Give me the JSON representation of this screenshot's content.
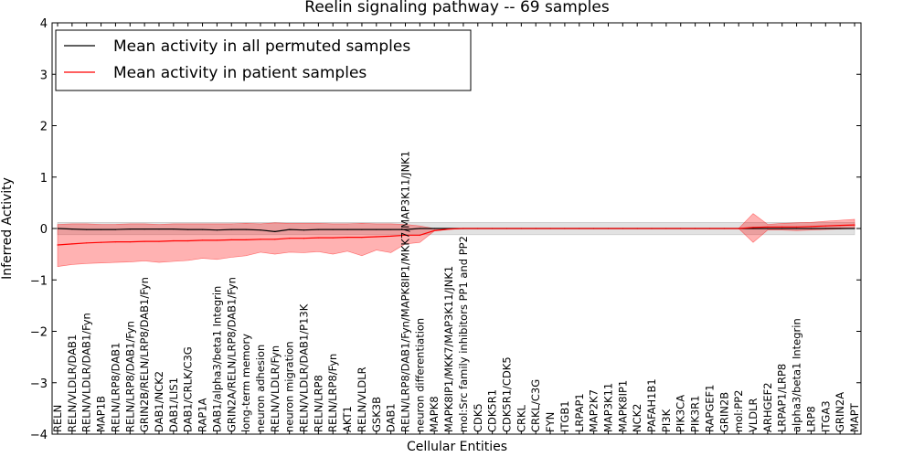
{
  "chart_data": {
    "type": "line",
    "title": "Reelin signaling pathway -- 69 samples",
    "xlabel": "Cellular Entities",
    "ylabel": "Inferred Activity",
    "ylim": [
      -4,
      4
    ],
    "yticks": [
      4,
      3,
      2,
      1,
      0,
      -1,
      -2,
      -3,
      -4
    ],
    "ytick_labels": [
      "4",
      "3",
      "2",
      "1",
      "0",
      "−1",
      "−2",
      "−3",
      "−4"
    ],
    "legend": {
      "placement": "top-left",
      "entries": [
        {
          "name": "Mean activity in all permuted samples",
          "color": "#000000"
        },
        {
          "name": "Mean activity in patient samples",
          "color": "#ff0000"
        }
      ]
    },
    "categories": [
      "RELN",
      "RELN/VLDLR/DAB1",
      "RELN/VLDLR/DAB1/Fyn",
      "MAP1B",
      "RELN/LRP8/DAB1",
      "RELN/LRP8/DAB1/Fyn",
      "GRIN2B/RELN/LRP8/DAB1/Fyn",
      "DAB1/NCK2",
      "DAB1/LIS1",
      "DAB1/CRLK/C3G",
      "RAP1A",
      "DAB1/alpha3/beta1 Integrin",
      "GRIN2A/RELN/LRP8/DAB1/Fyn",
      "long-term memory",
      "neuron adhesion",
      "RELN/VLDLR/Fyn",
      "neuron migration",
      "RELN/VLDLR/DAB1/P13K",
      "RELN/LRP8",
      "RELN/LRP8/Fyn",
      "AKT1",
      "RELN/VLDLR",
      "GSK3B",
      "DAB1",
      "RELN/LRP8/DAB1/Fyn/MAPK8IP1/MKK7/MAP3K11/JNK1",
      "neuron differentiation",
      "MAPK8",
      "MAPK8IP1/MKK7/MAP3K11/JNK1",
      "mol:Src family inhibitors PP1 and PP2",
      "CDK5",
      "CDK5R1",
      "CDK5R1/CDK5",
      "CRKL",
      "CRKL/C3G",
      "FYN",
      "ITGB1",
      "LRPAP1",
      "MAP2K7",
      "MAP3K11",
      "MAPK8IP1",
      "NCK2",
      "PAFAH1B1",
      "PI3K",
      "PIK3CA",
      "PIK3R1",
      "RAPGEF1",
      "GRIN2B",
      "mol:PP2",
      "VLDLR",
      "ARHGEF2",
      "LRPAP1/LRP8",
      "alpha3/beta1 Integrin",
      "LRP8",
      "ITGA3",
      "GRIN2A",
      "MAPT"
    ],
    "series": [
      {
        "name": "Mean activity in all permuted samples",
        "color": "#000000",
        "values": [
          0.0,
          -0.01,
          -0.02,
          -0.02,
          -0.02,
          -0.01,
          -0.01,
          -0.01,
          -0.01,
          -0.02,
          -0.02,
          -0.03,
          -0.02,
          -0.02,
          -0.03,
          -0.06,
          -0.02,
          -0.03,
          -0.02,
          -0.02,
          -0.02,
          -0.02,
          -0.02,
          -0.02,
          -0.02,
          0.0,
          0.0,
          0.0,
          0.0,
          0.0,
          0.0,
          0.0,
          0.0,
          0.0,
          0.0,
          0.0,
          0.0,
          0.0,
          0.0,
          0.0,
          0.0,
          0.0,
          0.0,
          0.0,
          0.0,
          0.0,
          0.0,
          0.0,
          0.0,
          0.0,
          0.0,
          0.0,
          0.0,
          0.0,
          0.0,
          0.0
        ],
        "band_lower": [
          -0.12,
          -0.12,
          -0.12,
          -0.12,
          -0.12,
          -0.12,
          -0.12,
          -0.12,
          -0.12,
          -0.12,
          -0.12,
          -0.12,
          -0.12,
          -0.12,
          -0.12,
          -0.12,
          -0.12,
          -0.12,
          -0.12,
          -0.12,
          -0.12,
          -0.12,
          -0.12,
          -0.12,
          -0.12,
          -0.12,
          -0.12,
          -0.12,
          -0.12,
          -0.12,
          -0.12,
          -0.12,
          -0.12,
          -0.12,
          -0.12,
          -0.12,
          -0.12,
          -0.12,
          -0.12,
          -0.12,
          -0.12,
          -0.12,
          -0.12,
          -0.12,
          -0.12,
          -0.12,
          -0.12,
          -0.12,
          -0.12,
          -0.12,
          -0.12,
          -0.12,
          -0.12,
          -0.12,
          -0.12,
          -0.12
        ],
        "band_upper": [
          0.12,
          0.12,
          0.12,
          0.12,
          0.12,
          0.12,
          0.12,
          0.12,
          0.12,
          0.12,
          0.12,
          0.12,
          0.12,
          0.12,
          0.12,
          0.12,
          0.12,
          0.12,
          0.12,
          0.12,
          0.12,
          0.12,
          0.12,
          0.12,
          0.12,
          0.12,
          0.12,
          0.12,
          0.12,
          0.12,
          0.12,
          0.12,
          0.12,
          0.12,
          0.12,
          0.12,
          0.12,
          0.12,
          0.12,
          0.12,
          0.12,
          0.12,
          0.12,
          0.12,
          0.12,
          0.12,
          0.12,
          0.12,
          0.12,
          0.12,
          0.12,
          0.12,
          0.12,
          0.12,
          0.12,
          0.12
        ]
      },
      {
        "name": "Mean activity in patient samples",
        "color": "#ff0000",
        "values": [
          -0.32,
          -0.3,
          -0.28,
          -0.27,
          -0.26,
          -0.26,
          -0.25,
          -0.25,
          -0.24,
          -0.24,
          -0.23,
          -0.23,
          -0.22,
          -0.22,
          -0.21,
          -0.21,
          -0.19,
          -0.19,
          -0.18,
          -0.18,
          -0.17,
          -0.17,
          -0.16,
          -0.15,
          -0.13,
          -0.13,
          -0.04,
          -0.01,
          0.0,
          0.0,
          0.0,
          0.0,
          0.0,
          0.0,
          0.0,
          0.0,
          0.0,
          0.0,
          0.0,
          0.0,
          0.0,
          0.0,
          0.0,
          0.0,
          0.0,
          0.0,
          0.0,
          0.0,
          0.02,
          0.03,
          0.03,
          0.03,
          0.04,
          0.05,
          0.06,
          0.07
        ],
        "band_lower": [
          -0.74,
          -0.7,
          -0.68,
          -0.67,
          -0.66,
          -0.65,
          -0.63,
          -0.66,
          -0.64,
          -0.62,
          -0.58,
          -0.6,
          -0.56,
          -0.53,
          -0.46,
          -0.5,
          -0.46,
          -0.47,
          -0.45,
          -0.5,
          -0.44,
          -0.53,
          -0.42,
          -0.47,
          -0.3,
          -0.27,
          -0.05,
          -0.02,
          0.0,
          0.0,
          0.0,
          0.0,
          0.0,
          0.0,
          0.0,
          0.0,
          0.0,
          0.0,
          0.0,
          0.0,
          0.0,
          0.0,
          0.0,
          0.0,
          0.0,
          0.0,
          0.0,
          0.0,
          -0.27,
          -0.03,
          -0.03,
          -0.04,
          -0.03,
          -0.02,
          -0.01,
          0.0
        ],
        "band_upper": [
          0.08,
          0.09,
          0.09,
          0.08,
          0.08,
          0.09,
          0.09,
          0.08,
          0.09,
          0.09,
          0.09,
          0.09,
          0.09,
          0.1,
          0.09,
          0.11,
          0.1,
          0.1,
          0.1,
          0.09,
          0.09,
          0.1,
          0.09,
          0.09,
          0.08,
          0.05,
          0.0,
          0.0,
          0.0,
          0.0,
          0.0,
          0.0,
          0.0,
          0.0,
          0.0,
          0.0,
          0.0,
          0.0,
          0.0,
          0.0,
          0.0,
          0.0,
          0.0,
          0.0,
          0.0,
          0.0,
          0.0,
          0.0,
          0.29,
          0.08,
          0.1,
          0.11,
          0.12,
          0.14,
          0.16,
          0.18
        ]
      }
    ]
  }
}
